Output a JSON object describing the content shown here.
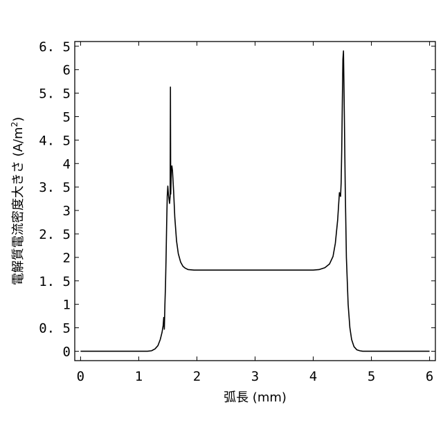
{
  "chart_data": {
    "type": "line",
    "title": "",
    "xlabel": "弧長 (mm)",
    "ylabel_main": "電解質電流密度大きさ (A/m",
    "ylabel_sup": "2",
    "ylabel_end": ")",
    "xlim": [
      -0.1,
      6.1
    ],
    "ylim": [
      -0.2,
      6.6
    ],
    "xticks": [
      0,
      1,
      2,
      3,
      4,
      5,
      6
    ],
    "yticks": [
      0,
      0.5,
      1,
      1.5,
      2,
      2.5,
      3,
      3.5,
      4,
      4.5,
      5,
      5.5,
      6,
      6.5
    ],
    "grid": false,
    "legend": "none",
    "series": [
      {
        "color": "#000000",
        "x": [
          0,
          1.0,
          1.15,
          1.22,
          1.28,
          1.33,
          1.37,
          1.4,
          1.42,
          1.43,
          1.44,
          1.45,
          1.46,
          1.47,
          1.48,
          1.49,
          1.5,
          1.51,
          1.52,
          1.53,
          1.54,
          1.545,
          1.55,
          1.555,
          1.56,
          1.57,
          1.58,
          1.6,
          1.62,
          1.65,
          1.68,
          1.72,
          1.76,
          1.8,
          1.85,
          1.9,
          1.95,
          2.0,
          2.5,
          3.0,
          3.5,
          4.0,
          4.1,
          4.2,
          4.28,
          4.34,
          4.38,
          4.42,
          4.45,
          4.47,
          4.48,
          4.49,
          4.5,
          4.51,
          4.52,
          4.53,
          4.55,
          4.57,
          4.6,
          4.63,
          4.66,
          4.7,
          4.75,
          4.8,
          4.85,
          4.9,
          5.0,
          6.0
        ],
        "y": [
          0,
          0,
          0,
          0.01,
          0.05,
          0.12,
          0.25,
          0.4,
          0.55,
          0.72,
          0.47,
          1.0,
          1.4,
          2.0,
          2.7,
          3.3,
          3.52,
          3.35,
          3.25,
          3.15,
          3.3,
          5.63,
          3.35,
          3.6,
          3.85,
          3.95,
          3.85,
          3.4,
          2.85,
          2.35,
          2.08,
          1.9,
          1.81,
          1.77,
          1.74,
          1.735,
          1.73,
          1.73,
          1.73,
          1.73,
          1.73,
          1.73,
          1.74,
          1.78,
          1.86,
          2.02,
          2.3,
          2.8,
          3.38,
          3.3,
          3.6,
          4.3,
          5.3,
          6.22,
          6.4,
          5.5,
          3.5,
          2.0,
          1.0,
          0.5,
          0.25,
          0.1,
          0.03,
          0.01,
          0,
          0,
          0,
          0
        ]
      }
    ]
  }
}
